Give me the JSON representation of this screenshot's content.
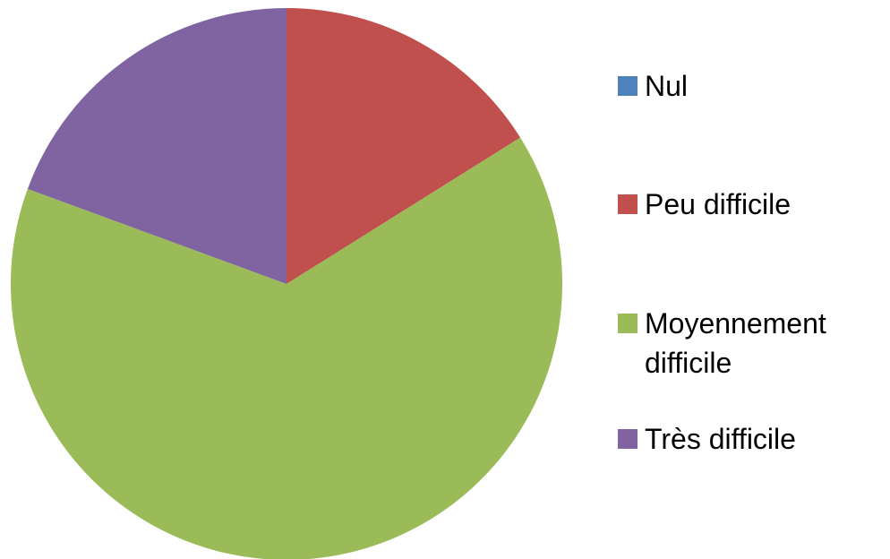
{
  "chart_data": {
    "type": "pie",
    "categories": [
      "Nul",
      "Peu difficile",
      "Moyennement difficile",
      "Très difficile"
    ],
    "values": [
      0,
      16.1,
      64.5,
      19.4
    ],
    "colors": [
      "#4f81bd",
      "#c0504d",
      "#9bbb59",
      "#8064a2"
    ],
    "legend": "right"
  }
}
